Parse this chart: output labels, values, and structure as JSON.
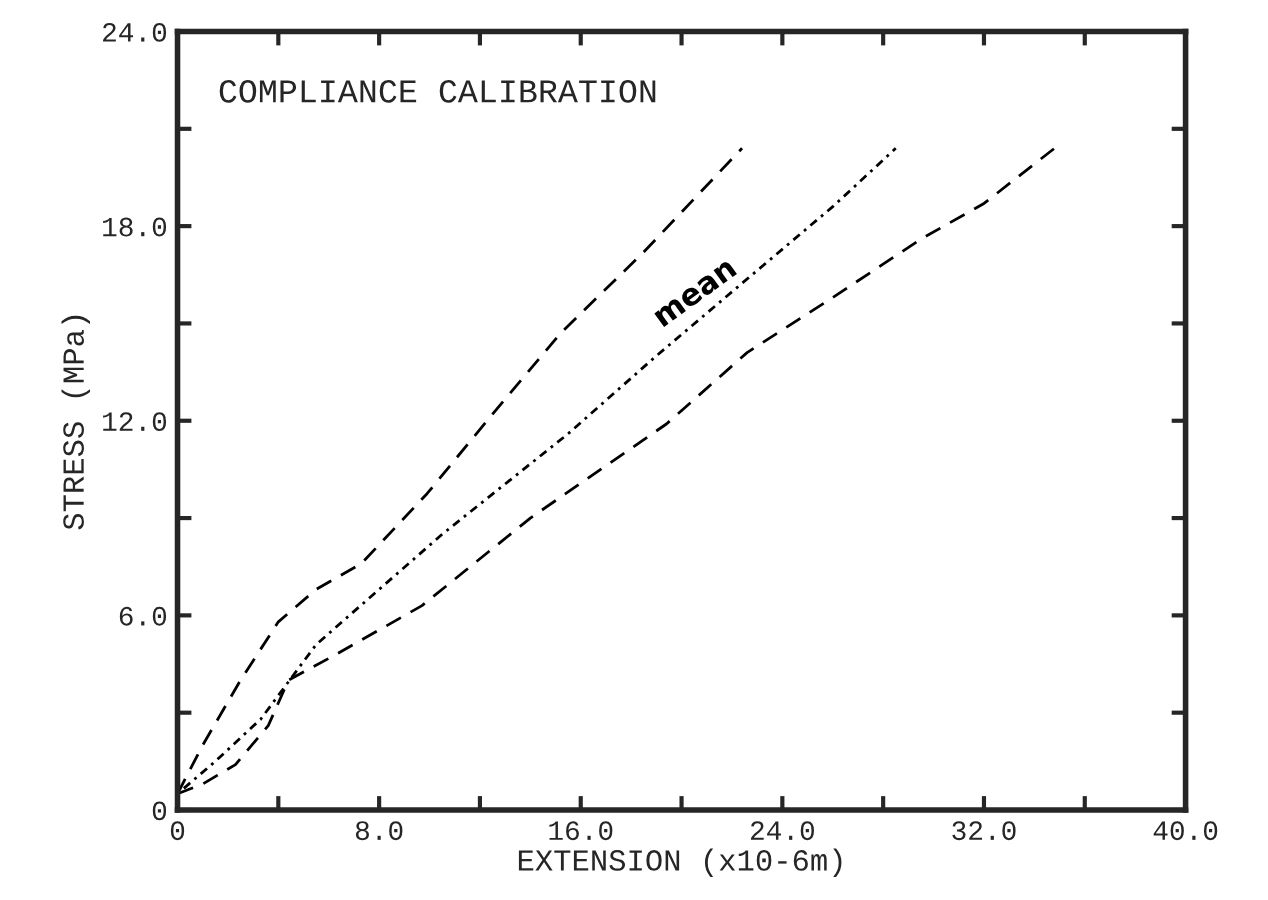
{
  "chart_data": {
    "type": "line",
    "title": "COMPLIANCE CALIBRATION",
    "xlabel": "EXTENSION (x10-6m)",
    "ylabel": "STRESS (MPa)",
    "xlim": [
      0,
      40
    ],
    "ylim": [
      0,
      24
    ],
    "xticks": [
      0,
      {
        "value": 4,
        "label": null
      },
      {
        "value": 8,
        "label": "8.0"
      },
      {
        "value": 12,
        "label": null
      },
      {
        "value": 16,
        "label": "16.0"
      },
      {
        "value": 20,
        "label": null
      },
      {
        "value": 24,
        "label": "24.0"
      },
      {
        "value": 28,
        "label": null
      },
      {
        "value": 32,
        "label": "32.0"
      },
      {
        "value": 36,
        "label": null
      },
      {
        "value": 40,
        "label": "40.0"
      }
    ],
    "yticks": [
      0,
      {
        "value": 3,
        "label": null
      },
      {
        "value": 6,
        "label": "6.0"
      },
      {
        "value": 9,
        "label": null
      },
      {
        "value": 12,
        "label": "12.0"
      },
      {
        "value": 15,
        "label": null
      },
      {
        "value": 18,
        "label": "18.0"
      },
      {
        "value": 21,
        "label": null
      },
      {
        "value": 24,
        "label": "24.0"
      }
    ],
    "grid": false,
    "legend": false,
    "series": [
      {
        "color": "#000000",
        "line_style": "dashed",
        "x": [
          0,
          1,
          2.5,
          4,
          5.5,
          7.3,
          9.9,
          12.6,
          15.2,
          18.5,
          22.4
        ],
        "values": [
          0.5,
          2,
          4,
          5.8,
          6.8,
          7.6,
          9.75,
          12.3,
          14.7,
          17.2,
          20.4
        ]
      },
      {
        "name": "mean",
        "color": "#000000",
        "line_style": "dotted",
        "x": [
          0,
          1.5,
          3.3,
          5.5,
          8,
          10.5,
          15.5,
          19,
          22.8,
          26,
          28.5
        ],
        "values": [
          0.5,
          1.5,
          2.8,
          5.1,
          6.8,
          8.5,
          11.6,
          14,
          16.5,
          18.6,
          20.4
        ]
      },
      {
        "color": "#000000",
        "line_style": "dashed",
        "x": [
          0,
          1,
          2.3,
          3.6,
          4.4,
          6.3,
          9.7,
          14,
          19.4,
          22.6,
          26,
          29.5,
          32,
          34.8
        ],
        "values": [
          0.5,
          0.8,
          1.4,
          2.6,
          4,
          4.8,
          6.3,
          9,
          11.9,
          14.1,
          15.8,
          17.6,
          18.7,
          20.4
        ]
      }
    ]
  }
}
